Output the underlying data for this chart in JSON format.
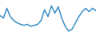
{
  "values": [
    60,
    55,
    75,
    58,
    50,
    45,
    42,
    40,
    42,
    38,
    40,
    42,
    50,
    72,
    58,
    80,
    65,
    78,
    55,
    38,
    28,
    32,
    45,
    58,
    68,
    75,
    68,
    75,
    70
  ],
  "line_color": "#3a8fc7",
  "bg_color": "#ffffff",
  "linewidth": 1.1,
  "ylim_min": 18,
  "ylim_max": 92
}
